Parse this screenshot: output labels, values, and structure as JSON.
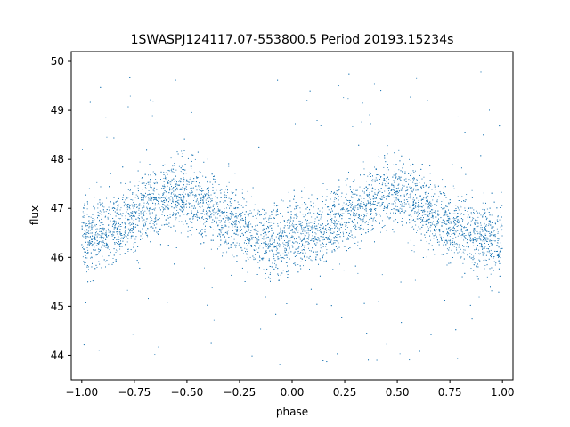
{
  "chart_data": {
    "type": "scatter",
    "title": "1SWASPJ124117.07-553800.5 Period 20193.15234s",
    "xlabel": "phase",
    "ylabel": "flux",
    "xlim": [
      -1.05,
      1.05
    ],
    "ylim": [
      43.5,
      50.2
    ],
    "x_ticks": [
      -1.0,
      -0.75,
      -0.5,
      -0.25,
      0.0,
      0.25,
      0.5,
      0.75,
      1.0
    ],
    "x_tick_labels": [
      "−1.00",
      "−0.75",
      "−0.50",
      "−0.25",
      "0.00",
      "0.25",
      "0.50",
      "0.75",
      "1.00"
    ],
    "y_ticks": [
      44,
      45,
      46,
      47,
      48,
      49,
      50
    ],
    "y_tick_labels": [
      "44",
      "45",
      "46",
      "47",
      "48",
      "49",
      "50"
    ],
    "grid": false,
    "marker_color": "#1f77b4",
    "series": [
      {
        "x": [
          -1.0,
          -0.95,
          -0.9,
          -0.85,
          -0.8,
          -0.75,
          -0.7,
          -0.65,
          -0.6,
          -0.55,
          -0.5,
          -0.45,
          -0.4,
          -0.35,
          -0.3,
          -0.25,
          -0.2,
          -0.15,
          -0.1,
          -0.05,
          0.0,
          0.05,
          0.1,
          0.15,
          0.2,
          0.25,
          0.3,
          0.35,
          0.4,
          0.45,
          0.5,
          0.55,
          0.6,
          0.65,
          0.7,
          0.75,
          0.8,
          0.85,
          0.9,
          0.95,
          1.0
        ],
        "y": [
          46.4,
          46.4,
          46.5,
          46.6,
          46.7,
          46.85,
          47.0,
          47.15,
          47.25,
          47.3,
          47.25,
          47.2,
          47.05,
          46.9,
          46.75,
          46.6,
          46.5,
          46.4,
          46.35,
          46.3,
          46.35,
          46.4,
          46.45,
          46.55,
          46.7,
          46.85,
          47.0,
          47.15,
          47.25,
          47.3,
          47.3,
          47.2,
          47.05,
          46.9,
          46.75,
          46.65,
          46.55,
          46.45,
          46.4,
          46.35,
          46.35
        ],
        "scatter_sd": [
          0.35,
          0.35,
          0.35,
          0.35,
          0.35,
          0.35,
          0.35,
          0.35,
          0.35,
          0.35,
          0.35,
          0.35,
          0.35,
          0.35,
          0.35,
          0.35,
          0.35,
          0.35,
          0.35,
          0.35,
          0.35,
          0.35,
          0.35,
          0.35,
          0.35,
          0.35,
          0.35,
          0.35,
          0.35,
          0.35,
          0.35,
          0.35,
          0.35,
          0.35,
          0.35,
          0.35,
          0.35,
          0.35,
          0.35,
          0.35,
          0.35
        ],
        "outlier_range": [
          43.8,
          49.8
        ]
      }
    ]
  }
}
